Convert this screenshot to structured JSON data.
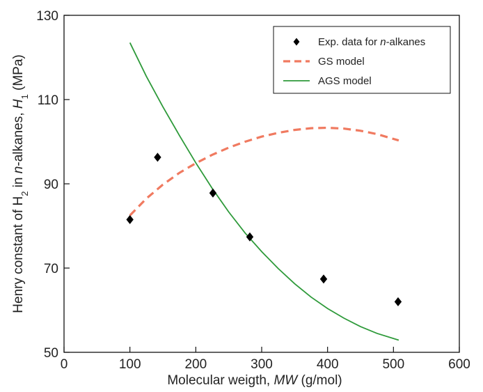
{
  "chart_data": {
    "type": "scatter",
    "xlabel": "Molecular weigth, MW (g/mol)",
    "ylabel": "Henry constant of H2 in n-alkanes, H1 (MPa)",
    "xlim": [
      0,
      600
    ],
    "ylim": [
      50,
      130
    ],
    "x_ticks": [
      "0",
      "100",
      "200",
      "300",
      "400",
      "500",
      "600"
    ],
    "y_ticks": [
      "50",
      "70",
      "90",
      "110",
      "130"
    ],
    "grid": false,
    "legend_position": "top-right",
    "series": [
      {
        "name": "Exp. data for n-alkanes",
        "kind": "scatter",
        "marker": "diamond",
        "color": "#000000",
        "x": [
          100,
          142,
          226,
          282,
          394,
          507
        ],
        "y": [
          81.5,
          96.3,
          87.8,
          77.4,
          67.4,
          62.0
        ]
      },
      {
        "name": "GS model",
        "kind": "line",
        "style": "dashed",
        "color": "#f07a60",
        "x": [
          100,
          125,
          150,
          175,
          200,
          225,
          250,
          275,
          300,
          325,
          350,
          375,
          400,
          425,
          450,
          475,
          508
        ],
        "y": [
          82.5,
          86.5,
          89.8,
          92.6,
          94.9,
          96.9,
          98.6,
          100.0,
          101.2,
          102.1,
          102.8,
          103.2,
          103.3,
          103.1,
          102.6,
          101.8,
          100.3
        ]
      },
      {
        "name": "AGS model",
        "kind": "line",
        "style": "solid",
        "color": "#2e9a3a",
        "x": [
          100,
          125,
          150,
          175,
          200,
          225,
          250,
          275,
          300,
          325,
          350,
          375,
          400,
          425,
          450,
          475,
          508
        ],
        "y": [
          123.5,
          115.5,
          108.3,
          101.5,
          95.0,
          88.9,
          83.3,
          78.3,
          73.9,
          69.9,
          66.3,
          63.1,
          60.4,
          58.1,
          56.1,
          54.5,
          52.9
        ]
      }
    ]
  }
}
